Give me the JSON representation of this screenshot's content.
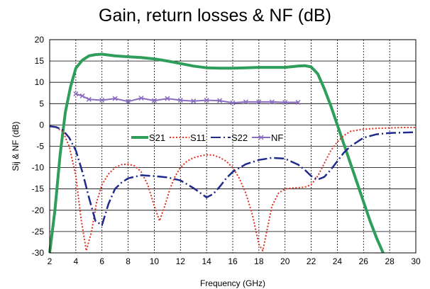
{
  "chart_data": {
    "type": "line",
    "title": "Gain, return losses & NF (dB)",
    "xlabel": "Frequency (GHz)",
    "ylabel": "Sij & NF (dB)",
    "xlim": [
      2,
      30
    ],
    "ylim": [
      -30,
      20
    ],
    "xticks": [
      2,
      4,
      6,
      8,
      10,
      12,
      14,
      16,
      18,
      20,
      22,
      24,
      26,
      28,
      30
    ],
    "yticks": [
      20,
      15,
      10,
      5,
      0,
      -5,
      -10,
      -15,
      -20,
      -25,
      -30
    ],
    "grid": true,
    "legend_position": "center",
    "series": [
      {
        "name": "S21",
        "color": "#2e9e5a",
        "style": "solid",
        "x": [
          2.0,
          2.4,
          2.8,
          3.2,
          3.6,
          4.0,
          4.5,
          5.0,
          5.5,
          6.0,
          7.0,
          8.0,
          9.0,
          10.0,
          11.0,
          12.0,
          13.0,
          14.0,
          15.0,
          16.0,
          17.0,
          18.0,
          19.0,
          20.0,
          21.0,
          21.5,
          22.0,
          22.5,
          23.0,
          23.5,
          24.0,
          24.5,
          25.0,
          25.5,
          26.0,
          26.5,
          27.0,
          27.5
        ],
        "y": [
          -30,
          -20,
          -7,
          3,
          9,
          13.3,
          15.2,
          16.2,
          16.5,
          16.6,
          16.2,
          16.0,
          15.8,
          15.5,
          15.0,
          14.4,
          13.8,
          13.4,
          13.3,
          13.3,
          13.4,
          13.5,
          13.5,
          13.5,
          13.8,
          13.9,
          13.6,
          12.0,
          8.5,
          4.5,
          0.0,
          -4.5,
          -9.0,
          -13.5,
          -18.0,
          -22.5,
          -26.5,
          -30
        ]
      },
      {
        "name": "S11",
        "color": "#e03020",
        "style": "dotted",
        "x": [
          2.0,
          2.5,
          3.0,
          3.5,
          4.0,
          4.4,
          4.8,
          5.2,
          5.6,
          6.0,
          6.5,
          7.0,
          7.5,
          8.0,
          8.5,
          9.0,
          9.5,
          10.0,
          10.4,
          10.8,
          11.2,
          11.6,
          12.0,
          12.5,
          13.0,
          13.5,
          14.0,
          14.5,
          15.0,
          15.5,
          16.0,
          16.5,
          17.0,
          17.5,
          18.0,
          18.3,
          18.6,
          19.0,
          19.5,
          20.0,
          20.5,
          21.0,
          21.5,
          22.0,
          22.5,
          23.0,
          23.5,
          24.0,
          24.5,
          25.0,
          26.0,
          27.0,
          28.0,
          29.0,
          30.0
        ],
        "y": [
          -0.3,
          -0.6,
          -1.5,
          -5,
          -12,
          -22,
          -29.5,
          -25,
          -18,
          -14,
          -11.5,
          -10,
          -9.3,
          -9.2,
          -9.6,
          -11,
          -14,
          -19,
          -22.5,
          -19,
          -15,
          -12,
          -10,
          -8.5,
          -7.7,
          -7.3,
          -7.0,
          -7.1,
          -7.6,
          -8.5,
          -10,
          -12.5,
          -16,
          -21,
          -28,
          -29.5,
          -25,
          -19,
          -16,
          -15,
          -14.8,
          -14.7,
          -14.6,
          -14,
          -12,
          -9,
          -6,
          -4,
          -2.5,
          -1.5,
          -1.0,
          -0.8,
          -0.7,
          -0.6,
          -0.6
        ]
      },
      {
        "name": "S22",
        "color": "#1e2b8c",
        "style": "dashdot",
        "x": [
          2.0,
          2.5,
          3.0,
          3.5,
          4.0,
          4.5,
          5.0,
          5.5,
          6.0,
          6.5,
          7.0,
          7.5,
          8.0,
          9.0,
          10.0,
          11.0,
          12.0,
          13.0,
          14.0,
          14.5,
          15.0,
          15.5,
          16.0,
          17.0,
          18.0,
          19.0,
          20.0,
          20.5,
          21.0,
          21.5,
          22.0,
          22.5,
          23.0,
          23.5,
          24.0,
          24.5,
          25.0,
          25.5,
          26.0,
          27.0,
          28.0,
          29.0,
          30.0
        ],
        "y": [
          -0.3,
          -0.5,
          -1.2,
          -3.0,
          -6.0,
          -11,
          -17,
          -22.5,
          -23.5,
          -18.5,
          -15,
          -13.5,
          -12.5,
          -11.8,
          -12.0,
          -12.3,
          -13,
          -14.8,
          -17,
          -16.2,
          -14.5,
          -12.5,
          -11,
          -9.2,
          -8.2,
          -7.7,
          -7.9,
          -8.6,
          -9.3,
          -10.5,
          -12,
          -12.8,
          -12.2,
          -10.5,
          -8.5,
          -6.5,
          -5.0,
          -4.0,
          -3.0,
          -2.2,
          -1.9,
          -1.8,
          -1.7
        ]
      },
      {
        "name": "NF",
        "color": "#8a6cc0",
        "style": "solid-markers",
        "x": [
          4.0,
          4.5,
          5.0,
          6.0,
          7.0,
          8.0,
          9.0,
          10.0,
          11.0,
          12.0,
          13.0,
          14.0,
          15.0,
          16.0,
          17.0,
          18.0,
          19.0,
          20.0,
          21.0
        ],
        "y": [
          7.3,
          6.8,
          6.0,
          5.8,
          6.2,
          5.5,
          6.3,
          5.7,
          6.2,
          5.8,
          5.6,
          5.8,
          5.7,
          5.2,
          5.4,
          5.4,
          5.4,
          5.3,
          5.3
        ]
      }
    ]
  }
}
